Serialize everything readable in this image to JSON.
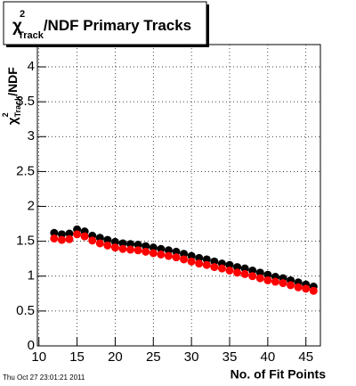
{
  "chart_data": {
    "type": "scatter",
    "title_parts": [
      "χ",
      "2",
      "Track",
      "/NDF Primary Tracks"
    ],
    "ylabel_parts": [
      "χ",
      "2",
      "Track",
      "/NDF"
    ],
    "xlabel": "No. of Fit Points",
    "footer": "Thu Oct 27 23:01:21 2011",
    "x": [
      12,
      13,
      14,
      15,
      16,
      17,
      18,
      19,
      20,
      21,
      22,
      23,
      24,
      25,
      26,
      27,
      28,
      29,
      30,
      31,
      32,
      33,
      34,
      35,
      36,
      37,
      38,
      39,
      40,
      41,
      42,
      43,
      44,
      45,
      46
    ],
    "series": [
      {
        "color": "#000000",
        "values": [
          1.62,
          1.6,
          1.61,
          1.67,
          1.64,
          1.58,
          1.55,
          1.52,
          1.49,
          1.47,
          1.46,
          1.45,
          1.43,
          1.41,
          1.39,
          1.37,
          1.35,
          1.32,
          1.29,
          1.26,
          1.24,
          1.21,
          1.18,
          1.16,
          1.13,
          1.11,
          1.08,
          1.05,
          1.02,
          0.99,
          0.97,
          0.94,
          0.91,
          0.88,
          0.85
        ]
      },
      {
        "color": "#ff0000",
        "values": [
          1.54,
          1.52,
          1.53,
          1.6,
          1.57,
          1.51,
          1.47,
          1.44,
          1.41,
          1.39,
          1.38,
          1.37,
          1.35,
          1.33,
          1.31,
          1.29,
          1.27,
          1.24,
          1.21,
          1.18,
          1.16,
          1.13,
          1.11,
          1.08,
          1.05,
          1.03,
          1.0,
          0.97,
          0.94,
          0.92,
          0.9,
          0.87,
          0.84,
          0.82,
          0.79
        ]
      }
    ],
    "xlim": [
      9.8,
      46.9
    ],
    "xticks": [
      10,
      15,
      20,
      25,
      30,
      35,
      40,
      45
    ],
    "ylim": [
      0,
      4.32
    ],
    "yticks": [
      0,
      0.5,
      1,
      1.5,
      2,
      2.5,
      3,
      3.5,
      4
    ],
    "grid": true
  }
}
